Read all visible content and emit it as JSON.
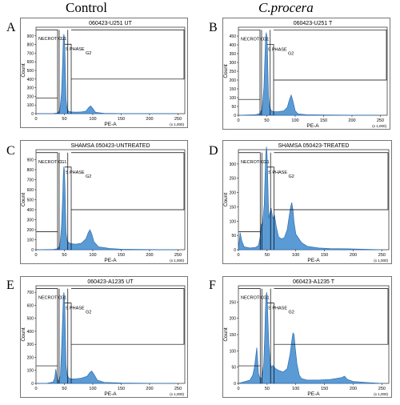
{
  "columns": {
    "left": "Control",
    "right": "C.procera"
  },
  "panels": [
    {
      "letter": "A",
      "title": "060423-U251 UT"
    },
    {
      "letter": "B",
      "title": "060423-U251 T"
    },
    {
      "letter": "C",
      "title": "SHAMSA 050423-UNTREATED"
    },
    {
      "letter": "D",
      "title": "SHAMSA 050423-TREATED"
    },
    {
      "letter": "E",
      "title": "060423-A1235 UT"
    },
    {
      "letter": "F",
      "title": "060423-A1235 T"
    }
  ],
  "gate_labels": {
    "necrotic": "NECROTIC",
    "g1": "G1",
    "s_phase": "S PHASE",
    "g2": "G2"
  },
  "axis": {
    "xlabel": "PE-A",
    "ylabel": "Count",
    "x_multiplier": "(x 1,000)"
  },
  "colors": {
    "histogram_fill": "#5b9bd5",
    "histogram_edge": "#2f6fb3",
    "gate_line": "#000000"
  },
  "chart_data": [
    {
      "type": "area",
      "panel": "A",
      "title": "060423-U251 UT",
      "xlabel": "PE-A",
      "ylabel": "Count",
      "xlim": [
        0,
        262
      ],
      "ylim": [
        0,
        1000
      ],
      "xticks": [
        0,
        50,
        100,
        150,
        200,
        250
      ],
      "yticks": [
        0,
        100,
        200,
        300,
        400,
        500,
        600,
        700,
        800,
        900
      ],
      "gates_x": [
        38,
        56,
        62
      ],
      "series": [
        {
          "x": [
            0,
            30,
            38,
            42,
            45,
            47,
            48,
            49,
            50,
            51,
            52,
            53,
            55,
            58,
            62,
            70,
            80,
            88,
            92,
            96,
            100,
            105,
            120,
            150,
            200,
            250
          ],
          "values": [
            0,
            2,
            8,
            40,
            240,
            620,
            850,
            920,
            880,
            700,
            420,
            160,
            50,
            25,
            20,
            18,
            20,
            30,
            65,
            90,
            60,
            15,
            4,
            2,
            1,
            0
          ]
        }
      ]
    },
    {
      "type": "area",
      "panel": "B",
      "title": "060423-U251 T",
      "xlabel": "PE-A",
      "ylabel": "Count",
      "xlim": [
        0,
        262
      ],
      "ylim": [
        0,
        500
      ],
      "xticks": [
        0,
        50,
        100,
        150,
        200,
        250
      ],
      "yticks": [
        0,
        50,
        100,
        150,
        200,
        250,
        300,
        350,
        400,
        450
      ],
      "gates_x": [
        38,
        56,
        62
      ],
      "series": [
        {
          "x": [
            0,
            30,
            38,
            42,
            45,
            47,
            48,
            49,
            50,
            51,
            52,
            53,
            55,
            58,
            62,
            70,
            80,
            86,
            90,
            93,
            96,
            100,
            105,
            120,
            150,
            200,
            250
          ],
          "values": [
            0,
            3,
            10,
            40,
            160,
            360,
            440,
            470,
            450,
            390,
            250,
            110,
            45,
            25,
            20,
            20,
            25,
            45,
            90,
            115,
            80,
            25,
            8,
            3,
            2,
            1,
            0
          ]
        }
      ]
    },
    {
      "type": "area",
      "panel": "C",
      "title": "SHAMSA 050423-UNTREATED",
      "xlabel": "PE-A",
      "ylabel": "Count",
      "xlim": [
        0,
        262
      ],
      "ylim": [
        0,
        1000
      ],
      "xticks": [
        0,
        50,
        100,
        150,
        200,
        250
      ],
      "yticks": [
        0,
        100,
        200,
        300,
        400,
        500,
        600,
        700,
        800,
        900
      ],
      "gates_x": [
        38,
        56,
        62
      ],
      "series": [
        {
          "x": [
            0,
            30,
            38,
            42,
            45,
            47,
            48,
            49,
            50,
            51,
            52,
            53,
            55,
            58,
            62,
            70,
            80,
            88,
            92,
            95,
            98,
            102,
            110,
            130,
            150,
            180,
            220,
            250
          ],
          "values": [
            0,
            3,
            10,
            45,
            230,
            540,
            740,
            830,
            800,
            640,
            390,
            170,
            85,
            70,
            60,
            55,
            65,
            110,
            170,
            200,
            160,
            80,
            30,
            12,
            6,
            3,
            1,
            0
          ]
        }
      ]
    },
    {
      "type": "area",
      "panel": "D",
      "title": "SHAMSA 050423-TREATED",
      "xlabel": "PE-A",
      "ylabel": "Count",
      "xlim": [
        0,
        262
      ],
      "ylim": [
        0,
        350
      ],
      "xticks": [
        0,
        50,
        100,
        150,
        200,
        250
      ],
      "yticks": [
        0,
        50,
        100,
        150,
        200,
        250,
        300
      ],
      "gates_x": [
        38,
        56,
        62
      ],
      "series": [
        {
          "x": [
            0,
            3,
            6,
            10,
            20,
            30,
            35,
            38,
            40,
            42,
            45,
            47,
            48,
            49,
            50,
            51,
            52,
            53,
            55,
            57,
            60,
            63,
            66,
            70,
            75,
            80,
            85,
            88,
            91,
            93,
            95,
            97,
            100,
            105,
            110,
            120,
            140,
            160,
            190,
            230,
            250
          ],
          "values": [
            0,
            60,
            30,
            10,
            6,
            8,
            15,
            45,
            90,
            85,
            160,
            290,
            340,
            360,
            330,
            260,
            180,
            110,
            130,
            145,
            110,
            120,
            80,
            45,
            38,
            42,
            70,
            110,
            150,
            165,
            140,
            95,
            55,
            40,
            25,
            12,
            6,
            4,
            3,
            1,
            0
          ]
        }
      ]
    },
    {
      "type": "area",
      "panel": "E",
      "title": "060423-A1235 UT",
      "xlabel": "PE-A",
      "ylabel": "Count",
      "xlim": [
        0,
        262
      ],
      "ylim": [
        0,
        750
      ],
      "xticks": [
        0,
        50,
        100,
        150,
        200,
        250
      ],
      "yticks": [
        0,
        100,
        200,
        300,
        400,
        500,
        600,
        700
      ],
      "gates_x": [
        38,
        56,
        62
      ],
      "series": [
        {
          "x": [
            0,
            20,
            30,
            33,
            35,
            37,
            40,
            43,
            45,
            47,
            48,
            49,
            50,
            51,
            52,
            53,
            55,
            58,
            62,
            70,
            80,
            90,
            95,
            98,
            102,
            108,
            120,
            150,
            200,
            250
          ],
          "values": [
            0,
            2,
            10,
            40,
            110,
            45,
            15,
            60,
            260,
            520,
            640,
            700,
            670,
            540,
            330,
            140,
            60,
            40,
            35,
            35,
            40,
            55,
            85,
            95,
            70,
            25,
            8,
            3,
            1,
            0
          ]
        }
      ]
    },
    {
      "type": "area",
      "panel": "F",
      "title": "060423-A1235 T",
      "xlabel": "PE-A",
      "ylabel": "Count",
      "xlim": [
        0,
        262
      ],
      "ylim": [
        0,
        300
      ],
      "xticks": [
        0,
        50,
        100,
        150,
        200,
        250
      ],
      "yticks": [
        0,
        50,
        100,
        150,
        200,
        250
      ],
      "gates_x": [
        38,
        56,
        62
      ],
      "series": [
        {
          "x": [
            0,
            10,
            20,
            25,
            28,
            32,
            35,
            38,
            41,
            44,
            46,
            47,
            48,
            49,
            50,
            51,
            52,
            53,
            55,
            57,
            60,
            65,
            70,
            78,
            85,
            90,
            93,
            95,
            97,
            99,
            102,
            106,
            110,
            120,
            140,
            160,
            180,
            185,
            190,
            200,
            230,
            250
          ],
          "values": [
            0,
            5,
            10,
            25,
            50,
            110,
            30,
            12,
            20,
            60,
            150,
            220,
            260,
            280,
            270,
            220,
            170,
            120,
            75,
            50,
            55,
            45,
            40,
            35,
            45,
            90,
            130,
            155,
            150,
            110,
            60,
            25,
            15,
            10,
            10,
            12,
            18,
            22,
            12,
            6,
            2,
            0
          ]
        }
      ]
    }
  ]
}
